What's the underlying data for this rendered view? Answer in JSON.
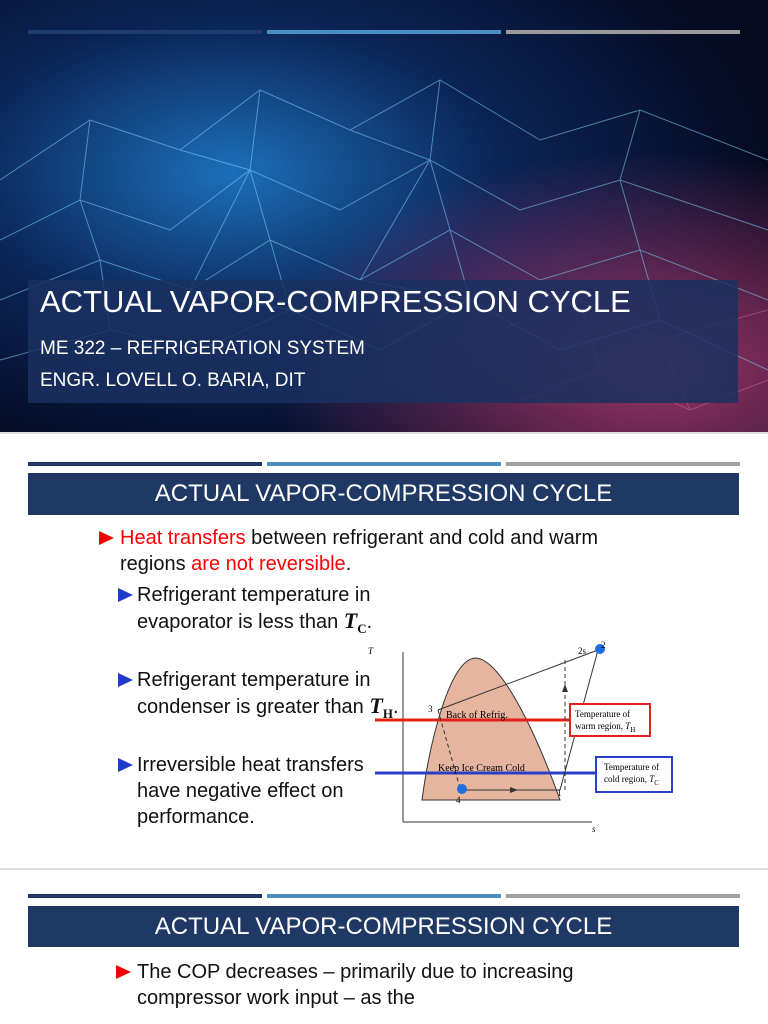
{
  "slides": [
    {
      "title": "ACTUAL VAPOR-COMPRESSION CYCLE",
      "subtitle_lines": [
        "ME 322 – REFRIGERATION SYSTEM",
        "ENGR. LOVELL O. BARIA, DIT"
      ]
    },
    {
      "title": "ACTUAL VAPOR-COMPRESSION CYCLE",
      "bullets": [
        {
          "level": 1,
          "runs": [
            {
              "text": "Heat transfers",
              "color": "#ff0000"
            },
            {
              "text": " between refrigerant and cold and warm regions "
            },
            {
              "text": "are not reversible",
              "color": "#ff0000"
            },
            {
              "text": "."
            }
          ]
        },
        {
          "level": 2,
          "runs": [
            {
              "text": "Refrigerant temperature in evaporator is less than "
            },
            {
              "text": "T",
              "math": true,
              "sub": "C"
            },
            {
              "text": "."
            }
          ]
        },
        {
          "level": 2,
          "runs": [
            {
              "text": "Refrigerant temperature in condenser is greater than "
            },
            {
              "text": "T",
              "math": true,
              "sub": "H"
            },
            {
              "text": "."
            }
          ]
        },
        {
          "level": 2,
          "runs": [
            {
              "text": "Irreversible heat transfers have negative effect on performance."
            }
          ]
        }
      ],
      "diagram": {
        "axis_y": "T",
        "axis_x": "s",
        "points": [
          "1",
          "2",
          "2s",
          "3",
          "4"
        ],
        "warm_label": "Back of Refrig.",
        "cold_label": "Keep Ice Cream Cold",
        "warm_box": [
          {
            "text": "Temperature of"
          },
          {
            "text": "warm region, "
          },
          {
            "text": "T",
            "math": true,
            "sub": "H"
          }
        ],
        "cold_box": [
          {
            "text": "Temperature of"
          },
          {
            "text": "cold region, "
          },
          {
            "text": "T",
            "math": true,
            "sub": "C"
          }
        ]
      }
    },
    {
      "title": "ACTUAL VAPOR-COMPRESSION CYCLE",
      "bullets": [
        {
          "level": 1,
          "runs": [
            {
              "text": "The COP decreases – primarily due to increasing compressor work input – as the"
            }
          ]
        }
      ]
    }
  ]
}
